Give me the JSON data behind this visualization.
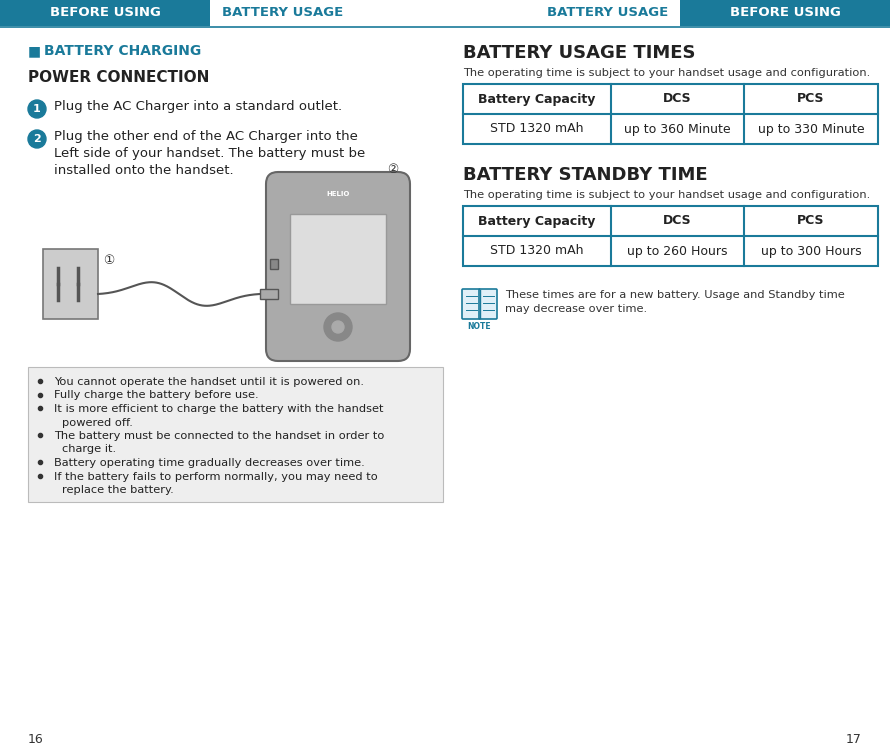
{
  "teal_color": "#1a7a9a",
  "body_bg": "#ffffff",
  "white": "#ffffff",
  "dark_text": "#222222",
  "gray_text": "#555555",
  "bullet_bg": "#eeeeee",
  "bullet_border": "#cccccc",
  "left_header_label1": "BEFORE USING",
  "left_header_label2": "BATTERY USAGE",
  "right_header_label1": "BATTERY USAGE",
  "right_header_label2": "BEFORE USING",
  "page_left": "16",
  "page_right": "17",
  "section_title": "BATTERY CHARGING",
  "power_connection_title": "POWER CONNECTION",
  "step1": "Plug the AC Charger into a standard outlet.",
  "step2_line1": "Plug the other end of the AC Charger into the",
  "step2_line2": "Left side of your handset. The battery must be",
  "step2_line3": "installed onto the handset.",
  "bullet_points": [
    "You cannot operate the handset until it is powered on.",
    "Fully charge the battery before use.",
    "It is more efficient to charge the battery with the handset",
    "powered off.",
    "The battery must be connected to the handset in order to",
    "charge it.",
    "Battery operating time gradually decreases over time.",
    "If the battery fails to perform normally, you may need to",
    "replace the battery."
  ],
  "bullet_groups": [
    [
      "You cannot operate the handset until it is powered on."
    ],
    [
      "Fully charge the battery before use."
    ],
    [
      "It is more efficient to charge the battery with the handset",
      "powered off."
    ],
    [
      "The battery must be connected to the handset in order to",
      "charge it."
    ],
    [
      "Battery operating time gradually decreases over time."
    ],
    [
      "If the battery fails to perform normally, you may need to",
      "replace the battery."
    ]
  ],
  "right_section1_title": "BATTERY USAGE TIMES",
  "right_section1_subtitle": "The operating time is subject to your handset usage and configuration.",
  "right_table1_headers": [
    "Battery Capacity",
    "DCS",
    "PCS"
  ],
  "right_table1_row": [
    "STD 1320 mAh",
    "up to 360 Minute",
    "up to 330 Minute"
  ],
  "right_section2_title": "BATTERY STANDBY TIME",
  "right_section2_subtitle": "The operating time is subject to your handset usage and configuration.",
  "right_table2_headers": [
    "Battery Capacity",
    "DCS",
    "PCS"
  ],
  "right_table2_row": [
    "STD 1320 mAh",
    "up to 260 Hours",
    "up to 300 Hours"
  ],
  "note_line1": "These times are for a new battery. Usage and Standby time",
  "note_line2": "may decrease over time."
}
